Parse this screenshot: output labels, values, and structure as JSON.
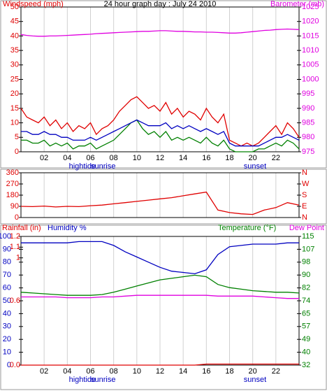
{
  "chart_data": [
    {
      "type": "line",
      "title": "24 hour graph day : July 24 2010",
      "ylabel": "Windspeed (mph)",
      "ycolor": "#e00000",
      "y2label": "Barometer (mb)",
      "y2color": "#e000e0",
      "xlim": [
        0,
        24
      ],
      "xticks": [
        {
          "value": 2,
          "label": "02"
        },
        {
          "value": 4,
          "label": "04"
        },
        {
          "value": 6,
          "label": "06"
        },
        {
          "value": 8,
          "label": "08"
        },
        10,
        12,
        14,
        16,
        18,
        20,
        22
      ],
      "grid": true,
      "ylim": [
        0,
        50
      ],
      "yticks": [
        0,
        5,
        10,
        15,
        20,
        25,
        30,
        35,
        40,
        45,
        50
      ],
      "y2lim": [
        975,
        1025
      ],
      "y2ticks": [
        975,
        980,
        985,
        990,
        995,
        1000,
        1005,
        1010,
        1015,
        1020,
        1025
      ],
      "annotations": [
        {
          "text": "hightide",
          "x": 5.3
        },
        {
          "text": "sunrise",
          "x": 7.1
        },
        {
          "text": "sunset",
          "x": 20.2
        }
      ],
      "x": [
        0,
        0.5,
        1,
        1.5,
        2,
        2.5,
        3,
        3.5,
        4,
        4.5,
        5,
        5.5,
        6,
        6.5,
        7,
        7.5,
        8,
        8.5,
        9,
        9.5,
        10,
        10.5,
        11,
        11.5,
        12,
        12.5,
        13,
        13.5,
        14,
        14.5,
        15,
        15.5,
        16,
        16.5,
        17,
        17.5,
        18,
        18.5,
        19,
        19.5,
        20,
        20.5,
        21,
        21.5,
        22,
        22.5,
        23,
        23.5,
        24
      ],
      "series": [
        {
          "color": "#008000",
          "values": [
            4,
            4,
            3,
            3,
            4,
            2,
            3,
            2,
            3,
            1,
            2,
            2,
            3,
            1,
            2,
            3,
            4,
            6,
            8,
            10,
            11,
            8,
            6,
            7,
            5,
            7,
            4,
            5,
            4,
            5,
            4,
            3,
            5,
            3,
            2,
            4,
            1,
            0,
            0,
            0,
            0,
            1,
            1,
            2,
            3,
            2,
            4,
            3,
            1
          ]
        },
        {
          "color": "#e00000",
          "values": [
            15,
            12,
            11,
            10,
            12,
            9,
            11,
            8,
            10,
            7,
            9,
            8,
            10,
            6,
            8,
            9,
            11,
            14,
            16,
            18,
            19,
            17,
            15,
            16,
            14,
            17,
            13,
            15,
            12,
            14,
            13,
            11,
            15,
            12,
            10,
            13,
            4,
            3,
            2,
            3,
            2,
            3,
            5,
            7,
            9,
            6,
            10,
            8,
            5
          ]
        },
        {
          "color": "#0000c0",
          "values": [
            7,
            7,
            6,
            6,
            7,
            6,
            6,
            5,
            5,
            4,
            4,
            4,
            5,
            4,
            5,
            6,
            7,
            8,
            9,
            10,
            11,
            10,
            9,
            9,
            9,
            10,
            8,
            9,
            8,
            9,
            8,
            7,
            8,
            7,
            6,
            7,
            3,
            2,
            2,
            2,
            2,
            2,
            3,
            4,
            5,
            5,
            6,
            5,
            4
          ]
        },
        {
          "color": "#e000e0",
          "axis": "y2",
          "values": [
            1015.5,
            1015.2,
            1015,
            1014.9,
            1014.9,
            1015,
            1015,
            1015.1,
            1015.2,
            1015.3,
            1015.4,
            1015.5,
            1015.6,
            1015.8,
            1015.9,
            1016,
            1016.1,
            1016.2,
            1016.3,
            1016.4,
            1016.5,
            1016.6,
            1016.6,
            1016.7,
            1016.8,
            1016.8,
            1016.7,
            1016.6,
            1016.6,
            1016.5,
            1016.4,
            1016.4,
            1016.3,
            1016.3,
            1016.2,
            1016.1,
            1016,
            1016,
            1016.1,
            1016.3,
            1016.5,
            1016.7,
            1016.9,
            1017,
            1017.2,
            1017.3,
            1017.4,
            1017.3,
            1017.2
          ]
        }
      ]
    },
    {
      "type": "line",
      "ycolor": "#e00000",
      "y2color": "#e00000",
      "xlim": [
        0,
        24
      ],
      "xticks": [
        2,
        4,
        6,
        8,
        10,
        12,
        14,
        16,
        18,
        20,
        22
      ],
      "grid": true,
      "ylim": [
        0,
        360
      ],
      "yticks": [
        0,
        90,
        180,
        270,
        360
      ],
      "y2lim": [
        0,
        360
      ],
      "y2ticks": [
        {
          "value": 0,
          "label": "N"
        },
        {
          "value": 90,
          "label": "E"
        },
        {
          "value": 180,
          "label": "S"
        },
        {
          "value": 270,
          "label": "W"
        },
        {
          "value": 360,
          "label": "N"
        }
      ],
      "x": [
        0,
        1,
        2,
        3,
        4,
        5,
        6,
        7,
        8,
        9,
        10,
        11,
        12,
        13,
        14,
        15,
        16,
        17,
        18,
        19,
        20,
        21,
        22,
        23,
        24
      ],
      "series": [
        {
          "color": "#e00000",
          "values": [
            90,
            88,
            92,
            85,
            90,
            88,
            95,
            100,
            110,
            120,
            130,
            140,
            150,
            160,
            175,
            190,
            205,
            60,
            40,
            30,
            25,
            60,
            80,
            120,
            100
          ]
        }
      ]
    },
    {
      "type": "line",
      "ycolor": "#0000c0",
      "y2color": "#008000",
      "y3color": "#e00000",
      "xlim": [
        0,
        24
      ],
      "xticks": [
        {
          "value": 2,
          "label": "02"
        },
        {
          "value": 4,
          "label": "04"
        },
        {
          "value": 6,
          "label": "06"
        },
        {
          "value": 8,
          "label": "08"
        },
        10,
        12,
        14,
        16,
        18,
        20,
        22
      ],
      "grid": true,
      "ylim": [
        0,
        100
      ],
      "yticks": [
        0,
        10,
        20,
        30,
        40,
        50,
        60,
        70,
        80,
        90,
        100
      ],
      "y2lim": [
        32,
        115
      ],
      "y2ticks": [
        32,
        {
          "value": 40.3,
          "label": "40"
        },
        {
          "value": 48.6,
          "label": "49"
        },
        {
          "value": 56.9,
          "label": "57"
        },
        {
          "value": 65.2,
          "label": "65"
        },
        {
          "value": 73.5,
          "label": "74"
        },
        {
          "value": 81.8,
          "label": "82"
        },
        {
          "value": 90.1,
          "label": "90"
        },
        {
          "value": 98.4,
          "label": "98"
        },
        {
          "value": 106.7,
          "label": "107"
        },
        115
      ],
      "y3lim": [
        0,
        1.2
      ],
      "y3ticks": [
        {
          "value": 0,
          "label": "0.0"
        },
        0.6,
        1,
        1.1,
        1.2
      ],
      "annotations": [
        {
          "text": "hightide",
          "x": 5.3
        },
        {
          "text": "sunrise",
          "x": 7.1
        },
        {
          "text": "sunset",
          "x": 20.2
        }
      ],
      "x": [
        0,
        1,
        2,
        3,
        4,
        5,
        6,
        7,
        8,
        9,
        10,
        11,
        12,
        13,
        14,
        15,
        16,
        17,
        18,
        19,
        20,
        21,
        22,
        23,
        24
      ],
      "series": [
        {
          "name": "Rainfall (in)",
          "color": "#e00000",
          "axis": "y3",
          "values": [
            0,
            0,
            0,
            0,
            0,
            0,
            0,
            0,
            0,
            0,
            0,
            0,
            0,
            0,
            0,
            0,
            0.01,
            0.01,
            0.01,
            0.01,
            0.01,
            0.01,
            0.01,
            0.01,
            0.01
          ]
        },
        {
          "name": "Humidity %",
          "color": "#0000c0",
          "values": [
            95,
            95,
            95,
            95,
            95,
            96,
            96,
            96,
            93,
            88,
            84,
            80,
            76,
            73,
            72,
            71,
            74,
            86,
            92,
            93,
            94,
            94,
            94,
            95,
            95
          ]
        },
        {
          "name": "Temperature (°F)",
          "color": "#008000",
          "axis": "y2",
          "values": [
            79,
            78.5,
            78,
            77.5,
            77,
            77,
            77,
            77.5,
            79,
            81,
            83,
            85,
            87,
            88,
            89,
            90,
            89,
            84,
            82,
            81,
            80,
            79.5,
            79,
            79,
            78.5
          ]
        },
        {
          "name": "Dew Point",
          "color": "#e000e0",
          "axis": "y2",
          "values": [
            76,
            76,
            76,
            76,
            75.5,
            75.5,
            75.5,
            76,
            76,
            76.5,
            77,
            77,
            77,
            77,
            77,
            77,
            77,
            76.5,
            76.5,
            76.5,
            76.5,
            76,
            75.5,
            75,
            75
          ]
        }
      ]
    }
  ]
}
